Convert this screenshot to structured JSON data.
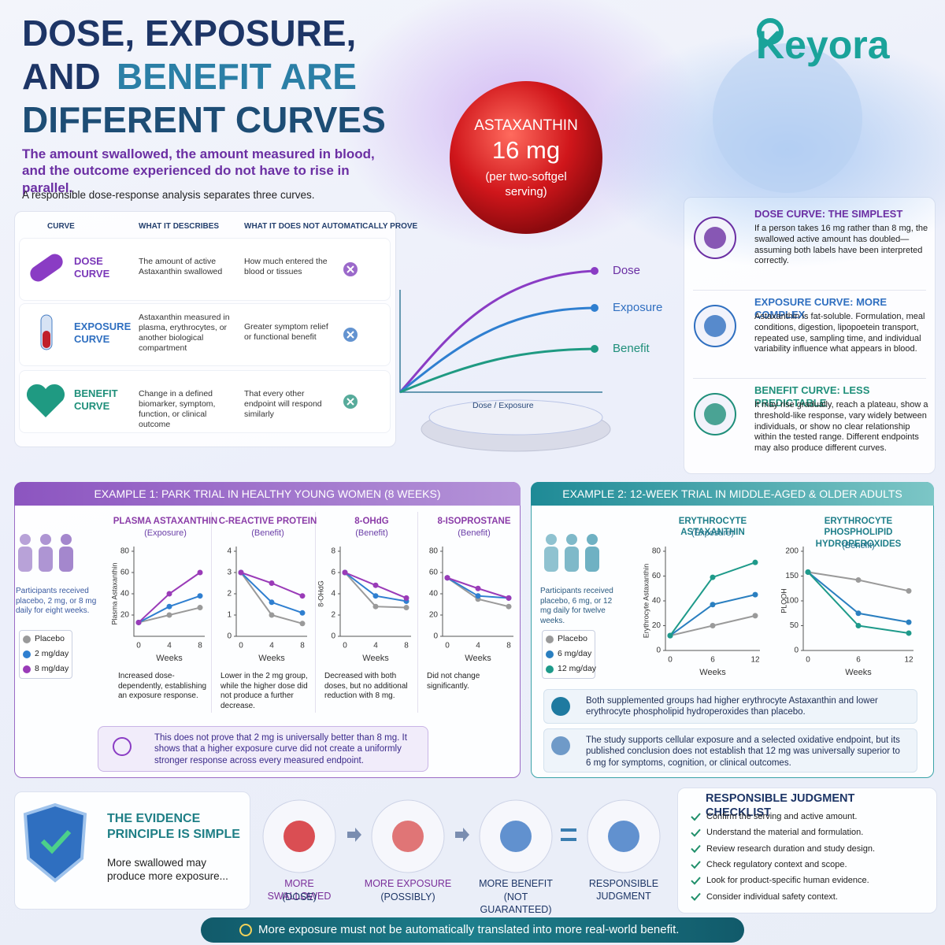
{
  "header": {
    "title": [
      "DOSE, EXPOSURE,",
      "AND",
      "BENEFIT ARE",
      "DIFFERENT CURVES"
    ],
    "subtitle": "The amount swallowed, the amount measured in blood, and the outcome experienced do not have to rise in parallel.",
    "intro": "A responsible dose-response analysis separates three curves.",
    "brand": "Keyora"
  },
  "badge": {
    "name": "ASTAXANTHIN",
    "dose": "16 mg",
    "note": "(per two-softgel serving)"
  },
  "table": {
    "headers": [
      "CURVE",
      "WHAT IT DESCRIBES",
      "WHAT IT DOES NOT AUTOMATICALLY PROVE"
    ],
    "rows": [
      [
        "DOSE CURVE",
        "The amount of active Astaxanthin swallowed",
        "How much entered the blood or tissues"
      ],
      [
        "EXPOSURE CURVE",
        "Astaxanthin measured in plasma, erythrocytes, or another biological compartment",
        "Greater symptom relief or functional benefit"
      ],
      [
        "BENEFIT CURVE",
        "Change in a defined biomarker, symptom, function, or clinical outcome",
        "That every other endpoint will respond similarly"
      ]
    ]
  },
  "diagram": {
    "x_label": "Dose / Exposure",
    "series": [
      {
        "name": "Dose",
        "color": "#8a3cc4"
      },
      {
        "name": "Exposure",
        "color": "#2f7fd0"
      },
      {
        "name": "Benefit",
        "color": "#1f9a82"
      }
    ]
  },
  "side_cards": [
    {
      "title": "DOSE CURVE: THE SIMPLEST",
      "text": "If a person takes 16 mg rather than 8 mg, the swallowed active amount has doubled—assuming both labels have been interpreted correctly."
    },
    {
      "title": "EXPOSURE CURVE: MORE COMPLEX",
      "text": "Astaxanthin is fat-soluble. Formulation, meal conditions, digestion, lipopoetein transport, repeated use, sampling time, and individual variability influence what appears in blood."
    },
    {
      "title": "BENEFIT CURVE: LESS PREDICTABLE",
      "text": "It may rise gradually, reach a plateau, show a threshold-like response, vary widely between individuals, or show no clear relationship within the tested range. Different endpoints may also produce different curves."
    }
  ],
  "example1": {
    "title": "EXAMPLE 1: PARK TRIAL IN HEALTHY YOUNG WOMEN (8 WEEKS)",
    "participants": "Participants received placebo, 2 mg, or 8 mg daily for eight weeks.",
    "legend": [
      {
        "name": "Placebo",
        "color": "#9a9a9a"
      },
      {
        "name": "2 mg/day",
        "color": "#2f7fd0"
      },
      {
        "name": "8 mg/day",
        "color": "#9a3bb8"
      }
    ],
    "charts": [
      {
        "title": "PLASMA ASTAXANTHIN",
        "subtitle": "(Exposure)",
        "y_label": "Plasma Astaxanthin",
        "x_label": "Weeks",
        "x": [
          0,
          4,
          8
        ],
        "xlim": [
          0,
          8
        ],
        "ylim": [
          0,
          80
        ],
        "yticks": [
          20,
          40,
          60,
          80
        ],
        "series": [
          [
            13,
            20,
            27
          ],
          [
            13,
            28,
            38
          ],
          [
            13,
            40,
            60
          ]
        ],
        "note": "Increased dose-dependently, establishing an exposure response."
      },
      {
        "title": "C-REACTIVE PROTEIN",
        "subtitle": "(Benefit)",
        "x_label": "Weeks",
        "x": [
          0,
          4,
          8
        ],
        "xlim": [
          0,
          8
        ],
        "ylim": [
          0,
          4
        ],
        "yticks": [
          0,
          1,
          2,
          3,
          4
        ],
        "series": [
          [
            3,
            1,
            0.6
          ],
          [
            3,
            1.6,
            1.1
          ],
          [
            3,
            2.5,
            1.9
          ]
        ],
        "note": "Lower in the 2 mg group, while the higher dose did not produce a further decrease."
      },
      {
        "title": "8-OHdG",
        "subtitle": "(Benefit)",
        "y_label": "8-OHdG",
        "x_label": "Weeks",
        "x": [
          0,
          4,
          8
        ],
        "xlim": [
          0,
          8
        ],
        "ylim": [
          0,
          8
        ],
        "yticks": [
          0,
          2,
          4,
          6,
          8
        ],
        "series": [
          [
            6,
            2.8,
            2.7
          ],
          [
            6,
            3.8,
            3.3
          ],
          [
            6,
            4.8,
            3.6
          ]
        ],
        "note": "Decreased with both doses, but no additional reduction with 8 mg."
      },
      {
        "title": "8-ISOPROSTANE",
        "subtitle": "(Benefit)",
        "x_label": "Weeks",
        "x": [
          0,
          4,
          8
        ],
        "xlim": [
          0,
          8
        ],
        "ylim": [
          0,
          80
        ],
        "yticks": [
          0,
          20,
          40,
          60,
          80
        ],
        "series": [
          [
            55,
            35,
            28
          ],
          [
            55,
            38,
            36
          ],
          [
            55,
            45,
            36
          ]
        ],
        "note": "Did not change significantly."
      }
    ],
    "callout": "This does not prove that 2 mg is universally better than 8 mg. It shows that a higher exposure curve did not create a uniformly stronger response across every measured endpoint."
  },
  "example2": {
    "title": "EXAMPLE 2: 12-WEEK TRIAL IN MIDDLE-AGED & OLDER ADULTS",
    "participants": "Participants received placebo, 6 mg, or 12 mg daily for twelve weeks.",
    "legend": [
      {
        "name": "Placebo",
        "color": "#9a9a9a"
      },
      {
        "name": "6 mg/day",
        "color": "#2a7fc0"
      },
      {
        "name": "12 mg/day",
        "color": "#1e9a8a"
      }
    ],
    "charts": [
      {
        "title": "ERYTHROCYTE ASTAXANTHIN",
        "subtitle": "(Exposure)",
        "y_label": "Erythrocyte Astaxanthin",
        "x_label": "Weeks",
        "x": [
          0,
          6,
          12
        ],
        "xlim": [
          0,
          12
        ],
        "ylim": [
          0,
          80
        ],
        "yticks": [
          0,
          20,
          40,
          60,
          80
        ],
        "series": [
          [
            12,
            20,
            28
          ],
          [
            12,
            37,
            45
          ],
          [
            12,
            59,
            71
          ]
        ]
      },
      {
        "title": "ERYTHROCYTE PHOSPHOLIPID HYDROPEROXIDES",
        "subtitle": "(Benefit)",
        "y_label": "PLOOH",
        "x_label": "Weeks",
        "x": [
          0,
          6,
          12
        ],
        "xlim": [
          0,
          12
        ],
        "ylim": [
          0,
          200
        ],
        "yticks": [
          0,
          50,
          100,
          150,
          200
        ],
        "series": [
          [
            158,
            142,
            120
          ],
          [
            158,
            75,
            57
          ],
          [
            158,
            50,
            35
          ]
        ]
      }
    ],
    "findings": [
      "Both supplemented groups had higher erythrocyte Astaxanthin and lower erythrocyte phospholipid hydroperoxides than placebo.",
      "The study supports cellular exposure and a selected oxidative endpoint, but its published conclusion does not establish that 12 mg was universally superior to 6 mg for symptoms, cognition, or clinical outcomes."
    ]
  },
  "principle": {
    "title": "THE EVIDENCE PRINCIPLE IS SIMPLE",
    "text": "More swallowed may produce more exposure..."
  },
  "flow": [
    {
      "label": "MORE SWALLOWED",
      "note": "(DOSE)"
    },
    {
      "label": "MORE EXPOSURE",
      "note": "(POSSIBLY)"
    },
    {
      "label": "MORE BENEFIT",
      "note": "(NOT GUARANTEED)"
    },
    {
      "label": "RESPONSIBLE JUDGMENT"
    }
  ],
  "checklist": {
    "title": "RESPONSIBLE JUDGMENT CHECKLIST",
    "items": [
      "Confirm the serving and active amount.",
      "Understand the material and formulation.",
      "Review research duration and study design.",
      "Check regulatory context and scope.",
      "Look for product-specific human evidence.",
      "Consider individual safety context."
    ]
  },
  "footer": "More exposure must not be automatically translated into more real-world benefit."
}
